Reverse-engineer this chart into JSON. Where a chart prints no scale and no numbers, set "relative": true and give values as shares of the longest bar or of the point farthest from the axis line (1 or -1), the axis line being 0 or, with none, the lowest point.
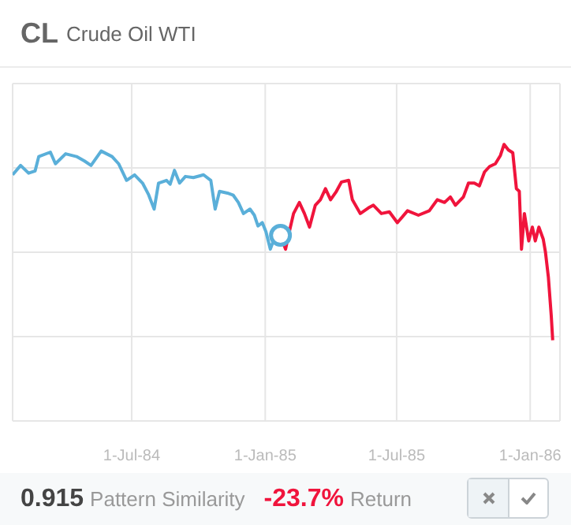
{
  "chart_data": {
    "type": "line",
    "title": "CL",
    "subtitle": "Crude Oil WTI",
    "relative": true,
    "grid": true,
    "marker": "none",
    "line_style": "solid",
    "xlim": [
      "1984-01-19",
      "1986-02-11"
    ],
    "xticks": [
      {
        "value": "1984-07-01",
        "label": "1-Jul-84"
      },
      {
        "value": "1985-01-01",
        "label": "1-Jan-85"
      },
      {
        "value": "1985-07-01",
        "label": "1-Jul-85"
      },
      {
        "value": "1986-01-01",
        "label": "1-Jan-86"
      }
    ],
    "series": [
      {
        "color": "#5aafd9",
        "x": [
          "1984-01-19",
          "1984-01-30",
          "1984-02-10",
          "1984-02-19",
          "1984-02-24",
          "1984-03-11",
          "1984-03-18",
          "1984-04-01",
          "1984-04-16",
          "1984-04-27",
          "1984-05-06",
          "1984-05-20",
          "1984-06-04",
          "1984-06-13",
          "1984-06-24",
          "1984-07-05",
          "1984-07-16",
          "1984-07-24",
          "1984-08-01",
          "1984-08-07",
          "1984-08-18",
          "1984-08-23",
          "1984-08-29",
          "1984-09-05",
          "1984-09-13",
          "1984-09-24",
          "1984-10-08",
          "1984-10-18",
          "1984-10-24",
          "1984-10-30",
          "1984-11-10",
          "1984-11-18",
          "1984-11-25",
          "1984-12-02",
          "1984-12-11",
          "1984-12-17",
          "1984-12-22",
          "1984-12-28",
          "1985-01-02",
          "1985-01-08",
          "1985-01-15",
          "1985-01-22"
        ],
        "values": [
          0.89,
          0.924,
          0.896,
          0.904,
          0.956,
          0.972,
          0.93,
          0.966,
          0.956,
          0.94,
          0.924,
          0.976,
          0.956,
          0.93,
          0.87,
          0.89,
          0.86,
          0.82,
          0.766,
          0.86,
          0.87,
          0.856,
          0.906,
          0.86,
          0.884,
          0.88,
          0.89,
          0.87,
          0.766,
          0.83,
          0.824,
          0.816,
          0.79,
          0.75,
          0.766,
          0.744,
          0.705,
          0.717,
          0.684,
          0.621,
          0.671,
          0.671
        ]
      },
      {
        "color": "#f0143c",
        "x": [
          "1985-01-22",
          "1985-01-29",
          "1985-02-02",
          "1985-02-09",
          "1985-02-17",
          "1985-02-24",
          "1985-03-03",
          "1985-03-11",
          "1985-03-18",
          "1985-03-25",
          "1985-04-01",
          "1985-04-09",
          "1985-04-16",
          "1985-04-26",
          "1985-05-01",
          "1985-05-12",
          "1985-05-23",
          "1985-05-30",
          "1985-06-10",
          "1985-06-21",
          "1985-07-02",
          "1985-07-16",
          "1985-07-31",
          "1985-08-15",
          "1985-08-26",
          "1985-09-05",
          "1985-09-13",
          "1985-09-20",
          "1985-10-01",
          "1985-10-08",
          "1985-10-16",
          "1985-10-23",
          "1985-10-30",
          "1985-11-06",
          "1985-11-14",
          "1985-11-21",
          "1985-11-26",
          "1985-12-02",
          "1985-12-08",
          "1985-12-13",
          "1985-12-17",
          "1985-12-20",
          "1985-12-24",
          "1985-12-30",
          "1986-01-04",
          "1986-01-08",
          "1986-01-13",
          "1986-01-19",
          "1986-01-22",
          "1986-01-26",
          "1986-01-30",
          "1986-02-01"
        ],
        "values": [
          0.671,
          0.621,
          0.671,
          0.75,
          0.79,
          0.75,
          0.701,
          0.78,
          0.8,
          0.84,
          0.8,
          0.83,
          0.864,
          0.87,
          0.8,
          0.75,
          0.77,
          0.78,
          0.75,
          0.756,
          0.717,
          0.76,
          0.744,
          0.76,
          0.8,
          0.79,
          0.81,
          0.78,
          0.81,
          0.86,
          0.86,
          0.85,
          0.9,
          0.92,
          0.93,
          0.96,
          1,
          0.98,
          0.97,
          0.84,
          0.83,
          0.621,
          0.75,
          0.651,
          0.701,
          0.651,
          0.701,
          0.657,
          0.611,
          0.521,
          0.381,
          0.292
        ]
      },
      {
        "type": "scatter",
        "marker": "circle",
        "color": "#5aafd9",
        "x": [
          "1985-01-22"
        ],
        "values": [
          0.671
        ]
      }
    ],
    "annotations": [
      "0.915",
      "Pattern Similarity",
      "-23.7%",
      "Return"
    ]
  }
}
